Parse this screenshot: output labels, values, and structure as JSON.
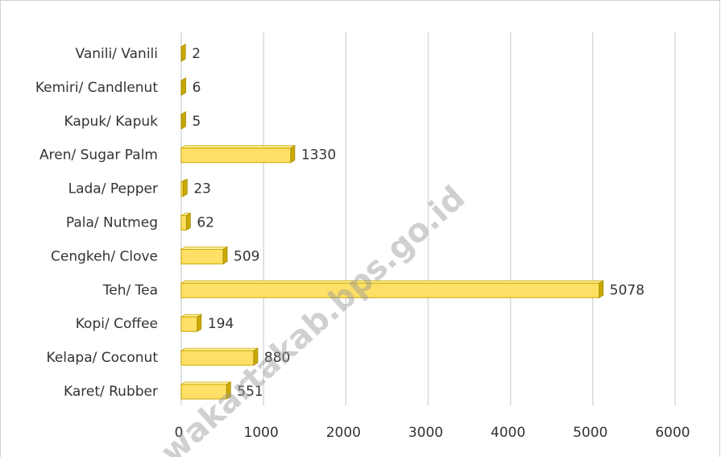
{
  "chart_data": {
    "type": "bar3d-horizontal",
    "categories": [
      "Vanili/ Vanili",
      "Kemiri/ Candlenut",
      "Kapuk/ Kapuk",
      "Aren/ Sugar Palm",
      "Lada/ Pepper",
      "Pala/ Nutmeg",
      "Cengkeh/ Clove",
      "Teh/ Tea",
      "Kopi/ Coffee",
      "Kelapa/ Coconut",
      "Karet/ Rubber"
    ],
    "values": [
      2,
      6,
      5,
      1330,
      23,
      62,
      509,
      5078,
      194,
      880,
      551
    ],
    "color": "#ffe066",
    "edge_color": "#c9a900",
    "xlim": [
      0,
      6000
    ],
    "xticks": [
      0,
      1000,
      2000,
      3000,
      4000,
      5000,
      6000
    ],
    "grid": true,
    "watermark": "wakartakab.bps.go.id"
  }
}
